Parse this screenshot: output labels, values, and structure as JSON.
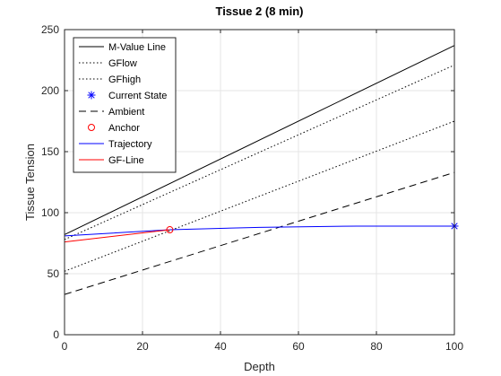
{
  "chart_data": {
    "type": "line",
    "title": "Tissue 2 (8 min)",
    "xlabel": "Depth",
    "ylabel": "Tissue Tension",
    "xlim": [
      0,
      100
    ],
    "ylim": [
      0,
      250
    ],
    "xticks": [
      0,
      20,
      40,
      60,
      80,
      100
    ],
    "yticks": [
      0,
      50,
      100,
      150,
      200,
      250
    ],
    "grid": true,
    "legend_position": "top-left",
    "series": [
      {
        "name": "M-Value Line",
        "color": "#000000",
        "style": "solid",
        "x": [
          0,
          100
        ],
        "y": [
          82,
          237
        ]
      },
      {
        "name": "GFlow",
        "color": "#000000",
        "style": "dotted",
        "x": [
          0,
          100
        ],
        "y": [
          78,
          221
        ]
      },
      {
        "name": "GFhigh",
        "color": "#000000",
        "style": "dotted",
        "x": [
          0,
          100
        ],
        "y": [
          52,
          175
        ]
      },
      {
        "name": "Current State",
        "color": "#0000ff",
        "style": "marker-asterisk",
        "x": [
          100
        ],
        "y": [
          89
        ]
      },
      {
        "name": "Ambient",
        "color": "#000000",
        "style": "dashed",
        "x": [
          0,
          100
        ],
        "y": [
          33,
          133
        ]
      },
      {
        "name": "Anchor",
        "color": "#ff0000",
        "style": "marker-circle",
        "x": [
          27
        ],
        "y": [
          86
        ]
      },
      {
        "name": "Trajectory",
        "color": "#0000ff",
        "style": "solid",
        "x": [
          0,
          27,
          50,
          75,
          100
        ],
        "y": [
          81,
          86,
          88,
          89,
          89
        ]
      },
      {
        "name": "GF-Line",
        "color": "#ff0000",
        "style": "solid",
        "x": [
          0,
          27
        ],
        "y": [
          76,
          86
        ]
      }
    ]
  }
}
